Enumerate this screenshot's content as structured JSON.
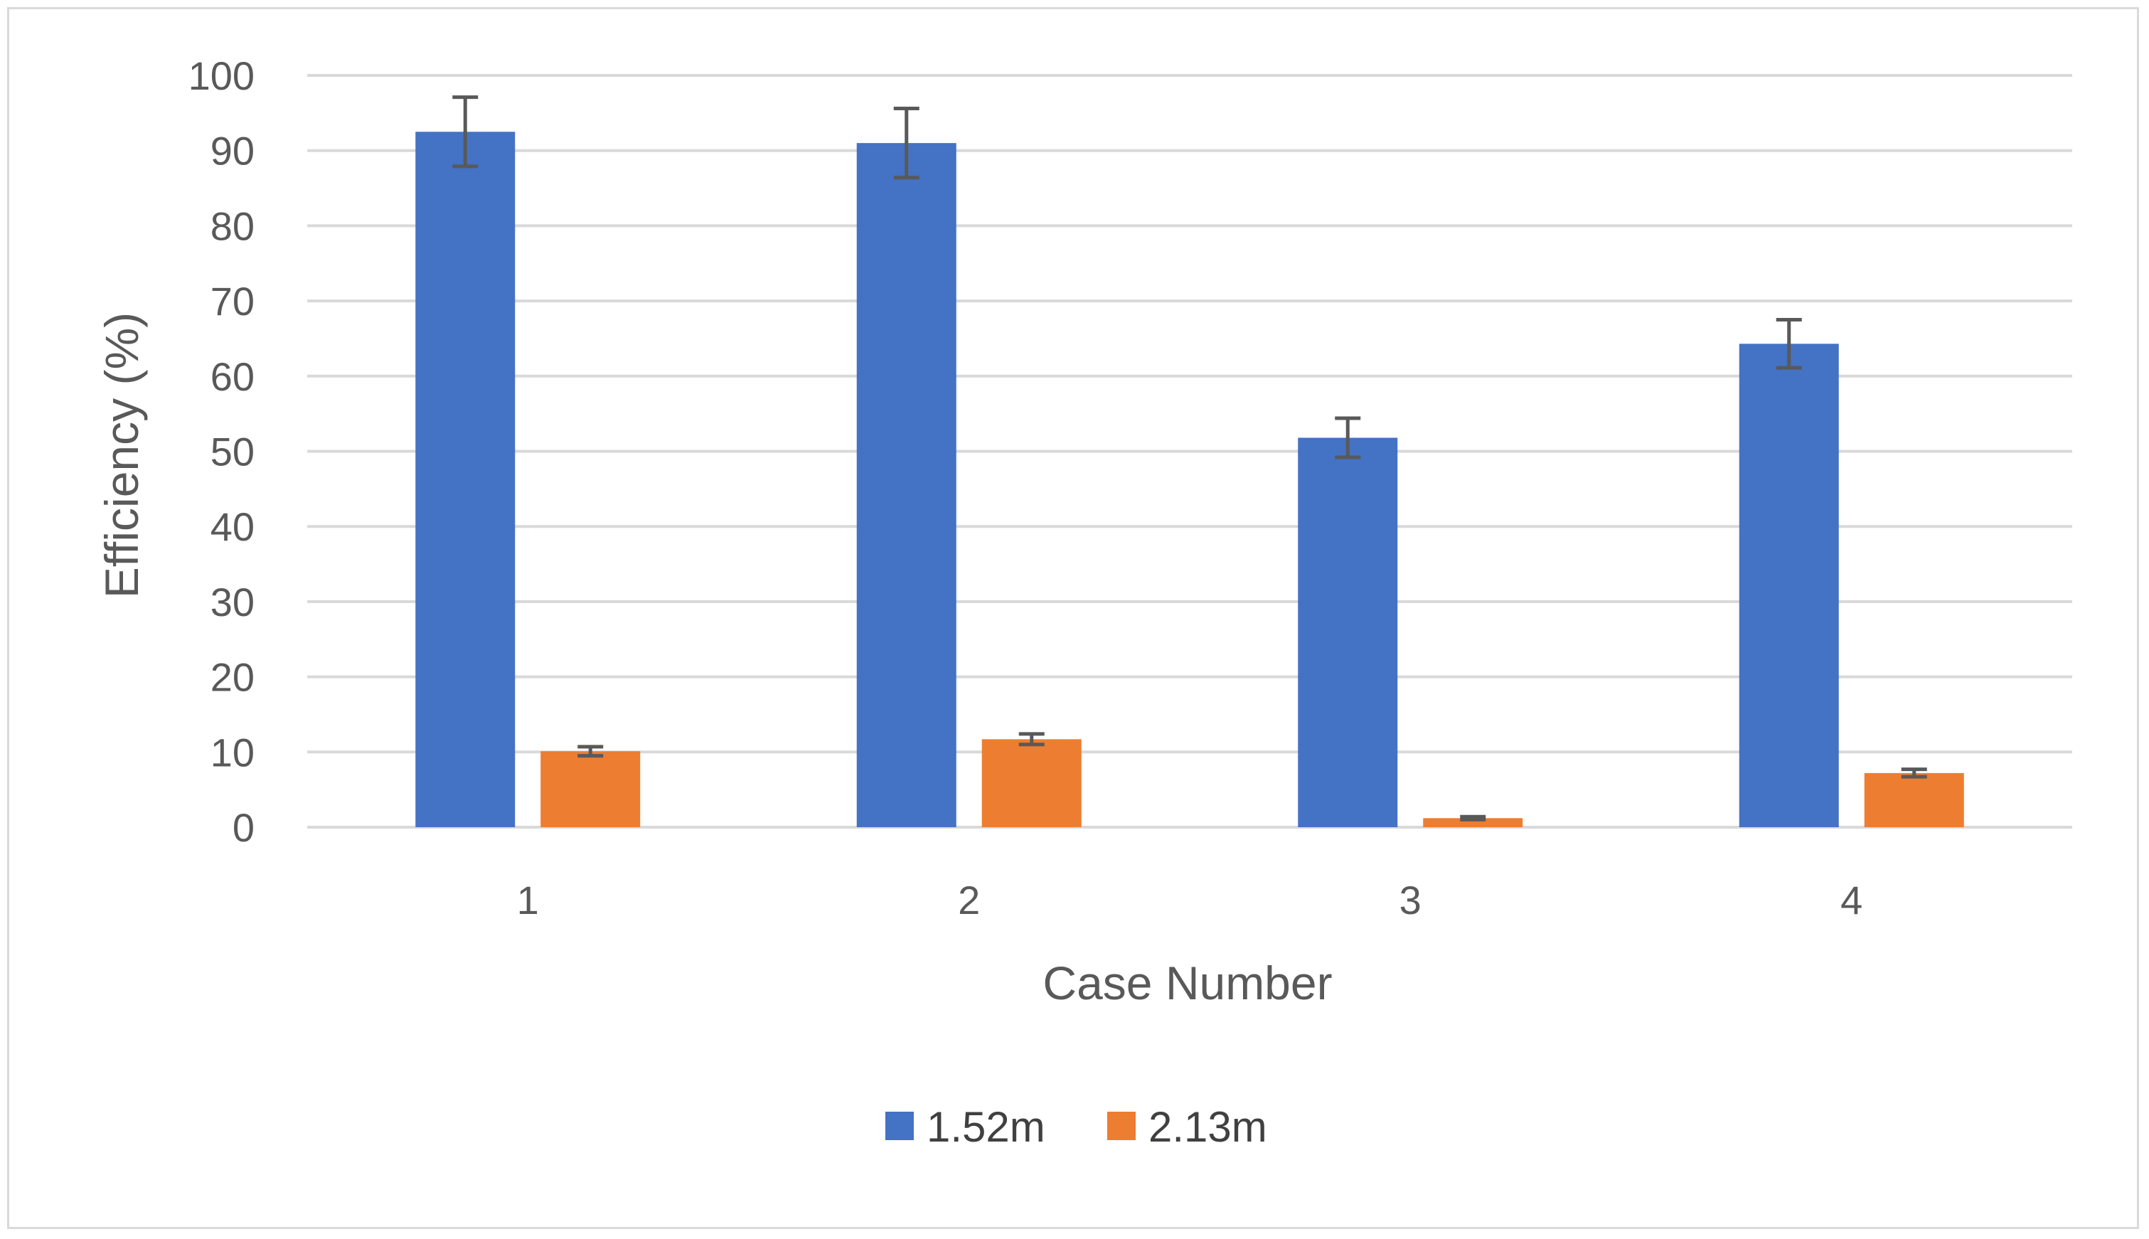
{
  "chart_data": {
    "type": "bar",
    "categories": [
      "1",
      "2",
      "3",
      "4"
    ],
    "series": [
      {
        "name": "1.52m",
        "color": "#4472c4",
        "values": [
          92.5,
          91.0,
          51.8,
          64.3
        ],
        "error": [
          4.6,
          4.6,
          2.6,
          3.2
        ]
      },
      {
        "name": "2.13m",
        "color": "#ed7d31",
        "values": [
          10.1,
          11.7,
          1.2,
          7.2
        ],
        "error": [
          0.6,
          0.7,
          0.2,
          0.5
        ]
      }
    ],
    "xlabel": "Case Number",
    "ylabel": "Efficiency (%)",
    "ylim": [
      0,
      100
    ],
    "yticks": [
      0,
      10,
      20,
      30,
      40,
      50,
      60,
      70,
      80,
      90,
      100
    ],
    "grid": true,
    "legend_position": "bottom",
    "error_bar_color": "#595959",
    "grid_color": "#d9d9d9"
  }
}
